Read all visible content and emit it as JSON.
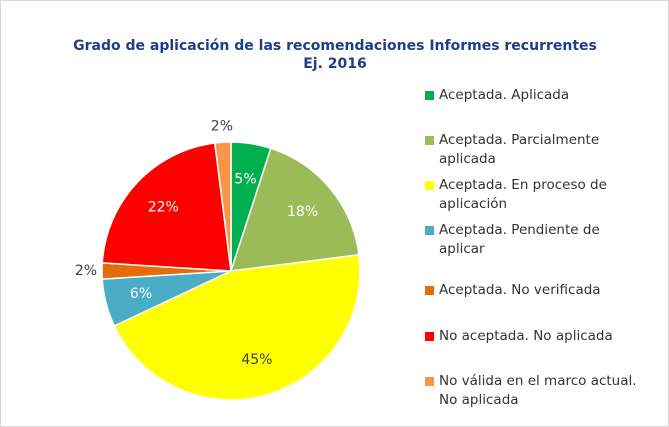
{
  "chart_data": {
    "type": "pie",
    "title": [
      "Grado de aplicación de las recomendaciones Informes recurrentes",
      "Ej. 2016"
    ],
    "categories": [
      "Aceptada. Aplicada",
      "Aceptada. Parcialmente aplicada",
      "Aceptada. En proceso de aplicación",
      "Aceptada. Pendiente de aplicar",
      "Aceptada. No verificada",
      "No aceptada. No aplicada",
      "No válida en el marco actual. No aplicada"
    ],
    "values": [
      5,
      18,
      45,
      6,
      2,
      22,
      2
    ],
    "value_labels": [
      "5%",
      "18%",
      "45%",
      "6%",
      "2%",
      "22%",
      "2%"
    ],
    "colors": [
      "#00b050",
      "#9bbb59",
      "#ffff00",
      "#4bacc6",
      "#e46c0a",
      "#ff0000",
      "#f79646"
    ],
    "legend": "right"
  }
}
